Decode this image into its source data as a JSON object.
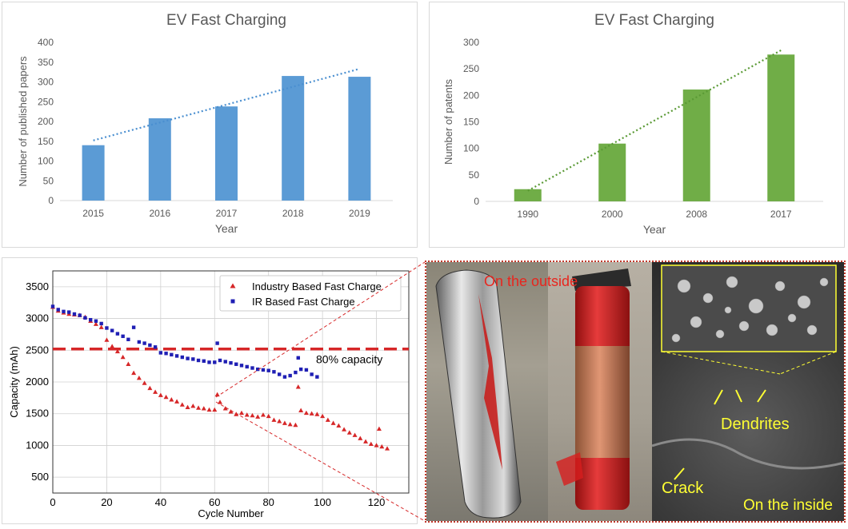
{
  "chart_data": [
    {
      "type": "bar",
      "title": "EV Fast Charging",
      "xlabel": "Year",
      "ylabel": "Number of published papers",
      "categories": [
        "2015",
        "2016",
        "2017",
        "2018",
        "2019"
      ],
      "values": [
        140,
        208,
        238,
        315,
        313
      ],
      "ylim": [
        0,
        400
      ],
      "yticks": [
        0,
        50,
        100,
        150,
        200,
        250,
        300,
        350,
        400
      ],
      "trendline": {
        "style": "dotted",
        "from": 152,
        "to": 333
      },
      "color": "#5b9bd5",
      "trend_color": "#4a8fd0"
    },
    {
      "type": "bar",
      "title": "EV Fast Charging",
      "xlabel": "Year",
      "ylabel": "Number of patents",
      "categories": [
        "1990",
        "2000",
        "2008",
        "2017"
      ],
      "values": [
        23,
        109,
        211,
        277
      ],
      "ylim": [
        0,
        300
      ],
      "yticks": [
        0,
        50,
        100,
        150,
        200,
        250,
        300
      ],
      "trendline": {
        "style": "dotted",
        "from": 20,
        "to": 285
      },
      "color": "#70ad47",
      "trend_color": "#5a9a35"
    },
    {
      "type": "scatter",
      "xlabel": "Cycle Number",
      "ylabel": "Capacity (mAh)",
      "xlim": [
        0,
        132
      ],
      "ylim": [
        250,
        3750
      ],
      "xticks": [
        0,
        20,
        40,
        60,
        80,
        100,
        120
      ],
      "yticks": [
        500,
        1000,
        1500,
        2000,
        2500,
        3000,
        3500
      ],
      "grid": true,
      "legend_position": "top-right",
      "threshold": {
        "y": 2520,
        "label": "80% capacity",
        "color": "#d62728"
      },
      "series": [
        {
          "name": "Industry Based Fast Charge",
          "marker": "triangle",
          "color": "#d62728",
          "x": [
            0,
            2,
            4,
            6,
            8,
            10,
            12,
            14,
            16,
            18,
            20,
            22,
            24,
            26,
            28,
            30,
            32,
            34,
            36,
            38,
            40,
            42,
            44,
            46,
            48,
            50,
            52,
            54,
            56,
            58,
            60,
            61,
            62,
            64,
            66,
            68,
            70,
            72,
            74,
            76,
            78,
            80,
            82,
            84,
            86,
            88,
            90,
            91,
            92,
            94,
            96,
            98,
            100,
            102,
            104,
            106,
            108,
            110,
            112,
            114,
            116,
            118,
            120,
            121,
            122,
            124
          ],
          "y": [
            3180,
            3120,
            3090,
            3070,
            3060,
            3050,
            3020,
            2960,
            2910,
            2860,
            2660,
            2560,
            2480,
            2390,
            2280,
            2140,
            2060,
            1980,
            1900,
            1840,
            1790,
            1760,
            1720,
            1690,
            1640,
            1600,
            1620,
            1590,
            1580,
            1560,
            1560,
            1800,
            1680,
            1580,
            1530,
            1490,
            1510,
            1480,
            1470,
            1450,
            1480,
            1460,
            1400,
            1380,
            1350,
            1330,
            1320,
            1920,
            1550,
            1510,
            1500,
            1490,
            1460,
            1400,
            1350,
            1310,
            1250,
            1200,
            1160,
            1110,
            1060,
            1020,
            1000,
            1260,
            980,
            950
          ]
        },
        {
          "name": "IR Based Fast Charge",
          "marker": "square",
          "color": "#1f1fb4",
          "x": [
            0,
            2,
            4,
            6,
            8,
            10,
            12,
            14,
            16,
            18,
            20,
            22,
            24,
            26,
            28,
            30,
            32,
            34,
            36,
            38,
            40,
            42,
            44,
            46,
            48,
            50,
            52,
            54,
            56,
            58,
            60,
            61,
            62,
            64,
            66,
            68,
            70,
            72,
            74,
            76,
            78,
            80,
            82,
            84,
            86,
            88,
            90,
            91,
            92,
            94,
            96,
            98
          ],
          "y": [
            3190,
            3140,
            3110,
            3100,
            3070,
            3050,
            3010,
            2980,
            2960,
            2920,
            2850,
            2810,
            2760,
            2720,
            2670,
            2860,
            2630,
            2610,
            2580,
            2550,
            2460,
            2450,
            2430,
            2410,
            2390,
            2370,
            2360,
            2340,
            2330,
            2310,
            2310,
            2610,
            2340,
            2320,
            2300,
            2280,
            2260,
            2240,
            2220,
            2200,
            2190,
            2180,
            2160,
            2120,
            2080,
            2100,
            2150,
            2380,
            2200,
            2190,
            2120,
            2080
          ]
        }
      ]
    }
  ],
  "photo_labels": {
    "outside": "On the outside",
    "dendrites": "Dendrites",
    "crack": "Crack",
    "inside": "On the inside"
  },
  "colors": {
    "red_label": "#e8261e",
    "yellow_label": "#ffff33",
    "zoom_line": "#d62728"
  }
}
